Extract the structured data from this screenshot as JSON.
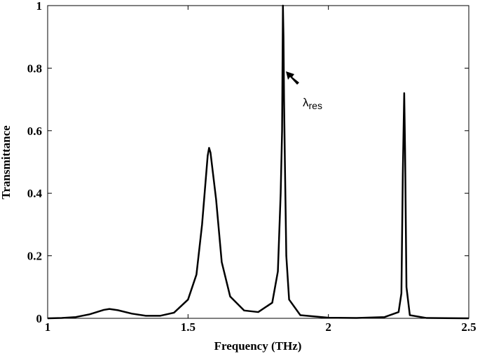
{
  "chart_data": {
    "type": "line",
    "xlabel": "Frequency (THz)",
    "ylabel": "Transmittance",
    "annotation": {
      "symbol": "λ",
      "subscript": "res"
    },
    "x": [
      1.0,
      1.05,
      1.1,
      1.15,
      1.2,
      1.22,
      1.25,
      1.3,
      1.35,
      1.4,
      1.45,
      1.5,
      1.53,
      1.55,
      1.57,
      1.575,
      1.58,
      1.6,
      1.62,
      1.65,
      1.7,
      1.75,
      1.8,
      1.82,
      1.83,
      1.835,
      1.838,
      1.84,
      1.842,
      1.845,
      1.85,
      1.86,
      1.9,
      2.0,
      2.1,
      2.2,
      2.25,
      2.26,
      2.265,
      2.27,
      2.273,
      2.278,
      2.29,
      2.35,
      2.5
    ],
    "series": [
      {
        "color": "#000000",
        "values": [
          0.0,
          0.001,
          0.004,
          0.013,
          0.027,
          0.03,
          0.026,
          0.015,
          0.008,
          0.008,
          0.018,
          0.06,
          0.14,
          0.3,
          0.52,
          0.545,
          0.53,
          0.38,
          0.18,
          0.07,
          0.025,
          0.02,
          0.05,
          0.15,
          0.4,
          0.6,
          1.0,
          0.9,
          0.7,
          0.5,
          0.2,
          0.06,
          0.01,
          0.002,
          0.001,
          0.004,
          0.02,
          0.08,
          0.46,
          0.72,
          0.54,
          0.1,
          0.01,
          0.001,
          0.0
        ]
      }
    ],
    "xlim": [
      1,
      2.5
    ],
    "ylim": [
      0,
      1
    ],
    "xticks": [
      1,
      1.5,
      2,
      2.5
    ],
    "yticks": [
      0,
      0.2,
      0.4,
      0.6,
      0.8,
      1
    ]
  }
}
